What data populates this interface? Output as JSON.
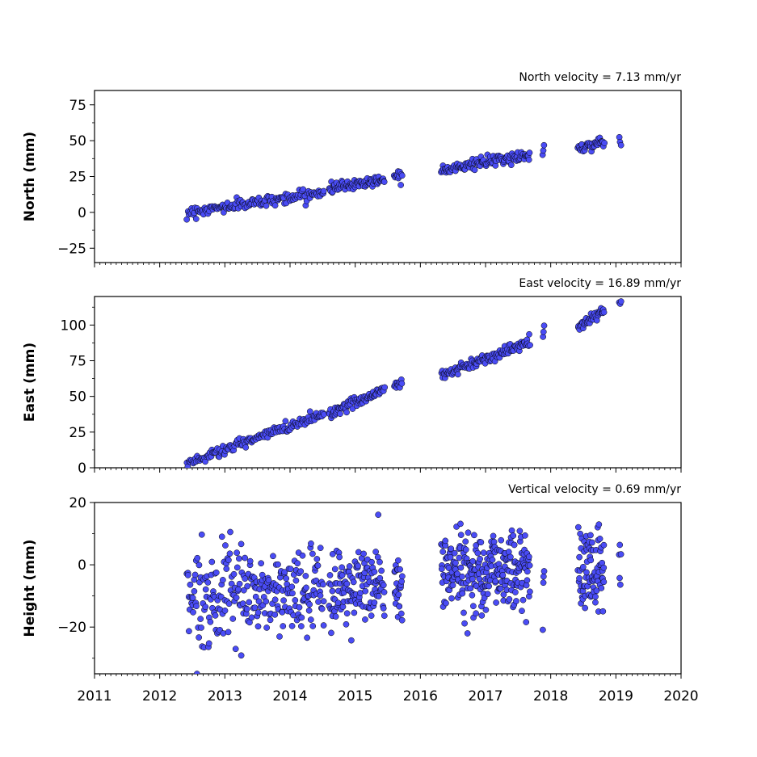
{
  "chart_data": {
    "type": "scatter",
    "marker_color": "#4a4cf5",
    "marker_edge_color": "#000000",
    "x_axis": {
      "range": [
        2011,
        2020
      ],
      "tick_labels": [
        "2011",
        "2012",
        "2013",
        "2014",
        "2015",
        "2016",
        "2017",
        "2018",
        "2019",
        "2020"
      ]
    },
    "panels": [
      {
        "id": "north",
        "ylabel": "North (mm)",
        "annotation": "North velocity = 7.13 mm/yr",
        "ylim": [
          -35,
          85
        ],
        "yticks": [
          -25,
          0,
          25,
          50,
          75
        ],
        "ytick_labels": [
          "−25",
          "0",
          "25",
          "50",
          "75"
        ],
        "velocity_mm_per_yr": 7.13,
        "scatter_sd": 1.8,
        "segments": [
          {
            "start": 2012.42,
            "end": 2014.52,
            "y_start": 0,
            "y_end": 14,
            "n": 150
          },
          {
            "start": 2014.6,
            "end": 2015.45,
            "y_start": 17,
            "y_end": 23,
            "n": 80
          },
          {
            "start": 2015.6,
            "end": 2015.72,
            "y_start": 25,
            "y_end": 27,
            "n": 12
          },
          {
            "start": 2016.32,
            "end": 2017.68,
            "y_start": 30,
            "y_end": 40,
            "n": 120
          },
          {
            "start": 2017.88,
            "end": 2017.9,
            "y_start": 43,
            "y_end": 44,
            "n": 3
          },
          {
            "start": 2018.42,
            "end": 2018.82,
            "y_start": 45,
            "y_end": 49,
            "n": 40
          },
          {
            "start": 2019.05,
            "end": 2019.08,
            "y_start": 51,
            "y_end": 51,
            "n": 3
          }
        ]
      },
      {
        "id": "east",
        "ylabel": "East (mm)",
        "annotation": "East velocity = 16.89 mm/yr",
        "ylim": [
          0,
          120
        ],
        "yticks": [
          0,
          25,
          50,
          75,
          100
        ],
        "ytick_labels": [
          "0",
          "25",
          "50",
          "75",
          "100"
        ],
        "velocity_mm_per_yr": 16.89,
        "scatter_sd": 1.8,
        "segments": [
          {
            "start": 2012.42,
            "end": 2014.52,
            "y_start": 3,
            "y_end": 38,
            "n": 150
          },
          {
            "start": 2014.6,
            "end": 2015.45,
            "y_start": 38,
            "y_end": 55,
            "n": 80
          },
          {
            "start": 2015.6,
            "end": 2015.72,
            "y_start": 57,
            "y_end": 60,
            "n": 12
          },
          {
            "start": 2016.32,
            "end": 2017.68,
            "y_start": 65,
            "y_end": 88,
            "n": 120
          },
          {
            "start": 2017.88,
            "end": 2017.9,
            "y_start": 92,
            "y_end": 99,
            "n": 3
          },
          {
            "start": 2018.42,
            "end": 2018.82,
            "y_start": 98,
            "y_end": 111,
            "n": 40
          },
          {
            "start": 2019.05,
            "end": 2019.08,
            "y_start": 116,
            "y_end": 118,
            "n": 3
          }
        ]
      },
      {
        "id": "height",
        "ylabel": "Height (mm)",
        "annotation": "Vertical velocity = 0.69 mm/yr",
        "ylim": [
          -35,
          20
        ],
        "yticks": [
          -20,
          0,
          20
        ],
        "ytick_labels": [
          "−20",
          "0",
          "20"
        ],
        "velocity_mm_per_yr": 0.69,
        "scatter_sd": 6.5,
        "segments": [
          {
            "start": 2012.42,
            "end": 2014.52,
            "y_start": -10,
            "y_end": -9,
            "n": 260
          },
          {
            "start": 2014.6,
            "end": 2015.45,
            "y_start": -8,
            "y_end": -6,
            "n": 130
          },
          {
            "start": 2015.6,
            "end": 2015.72,
            "y_start": -9,
            "y_end": -8,
            "n": 25
          },
          {
            "start": 2016.32,
            "end": 2017.68,
            "y_start": -2,
            "y_end": -1,
            "n": 250
          },
          {
            "start": 2017.88,
            "end": 2017.9,
            "y_start": -11,
            "y_end": -11,
            "n": 4
          },
          {
            "start": 2018.42,
            "end": 2018.82,
            "y_start": -1,
            "y_end": -2,
            "n": 80
          },
          {
            "start": 2019.05,
            "end": 2019.08,
            "y_start": 0,
            "y_end": 0,
            "n": 5
          }
        ]
      }
    ]
  }
}
